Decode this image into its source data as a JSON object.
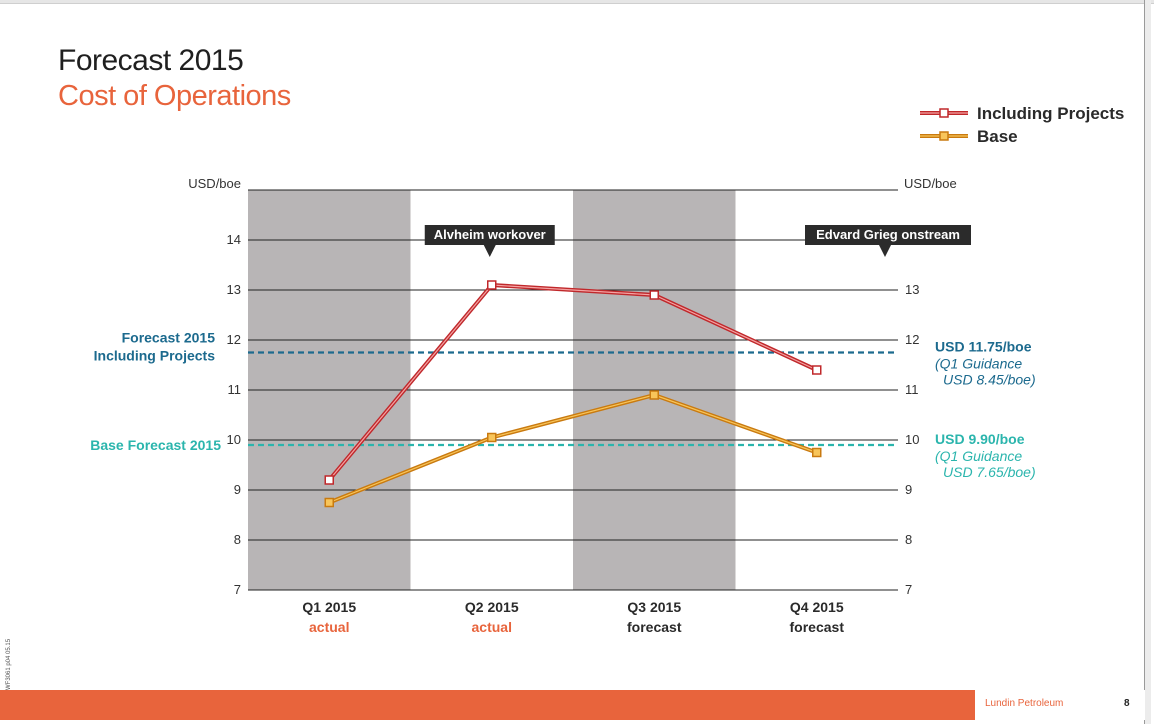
{
  "header": {
    "title": "Forecast 2015",
    "subtitle": "Cost of Operations"
  },
  "footer": {
    "brand": "Lundin Petroleum",
    "page_number": "8",
    "side_code": "WF3061 p04 05.15"
  },
  "colors": {
    "including_projects": "#d94040",
    "base": "#f2a33a",
    "forecast_including_line": "#1c6a8e",
    "forecast_base_line": "#2bb5ad",
    "shaded_band": "#b8b5b6",
    "accent": "#e8643c"
  },
  "chart_data": {
    "type": "line",
    "categories": [
      "Q1 2015",
      "Q2 2015",
      "Q3 2015",
      "Q4 2015"
    ],
    "category_sublabels": [
      "actual",
      "actual",
      "forecast",
      "forecast"
    ],
    "shaded_categories": [
      "Q1 2015",
      "Q3 2015"
    ],
    "series": [
      {
        "name": "Including Projects",
        "values": [
          9.2,
          13.1,
          12.9,
          11.4
        ]
      },
      {
        "name": "Base",
        "values": [
          8.75,
          10.05,
          10.9,
          9.75
        ]
      }
    ],
    "ylim": [
      7,
      15
    ],
    "yticks": [
      7,
      8,
      9,
      10,
      11,
      12,
      13,
      14
    ],
    "ylabel_left": "USD/boe",
    "ylabel_right": "USD/boe",
    "grid": true,
    "legend_position": "top-right",
    "reference_lines": [
      {
        "value": 11.75,
        "left_label_lines": [
          "Forecast 2015",
          "Including Projects"
        ],
        "right_label": "USD 11.75/boe",
        "right_sub_lines": [
          "(Q1 Guidance",
          "USD 8.45/boe)"
        ]
      },
      {
        "value": 9.9,
        "left_label_lines": [
          "Base Forecast 2015"
        ],
        "right_label": "USD 9.90/boe",
        "right_sub_lines": [
          "(Q1 Guidance",
          "USD 7.65/boe)"
        ]
      }
    ],
    "annotations": [
      {
        "text": "Alvheim workover",
        "category": "Q2 2015"
      },
      {
        "text": "Edvard Grieg onstream",
        "category": "Q4 2015"
      }
    ]
  }
}
